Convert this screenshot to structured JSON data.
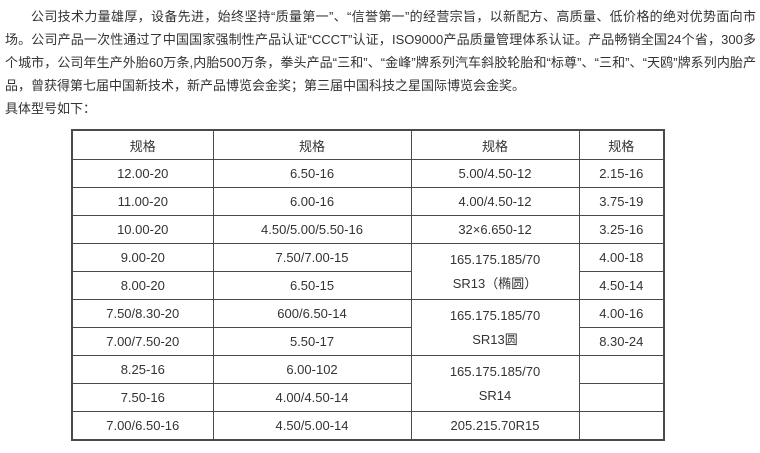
{
  "intro": {
    "paragraph": "公司技术力量雄厚，设备先进，始终坚持“质量第一”、“信誉第一”的经营宗旨，以新配方、高质量、低价格的绝对优势面向市场。公司产品一次性通过了中国国家强制性产品认证“CCCT”认证，ISO9000产品质量管理体系认证。产品畅销全国24个省，300多个城市，公司年生产外胎60万条,内胎500万条，拳头产品“三和”、“金峰”牌系列汽车斜胶轮胎和“标尊”、“三和”、“天鸥”牌系列内胎产品，曾获得第七届中国新技术，新产品博览会金奖；第三届中国科技之星国际博览会金奖。",
    "caption": "具体型号如下："
  },
  "colors": {
    "text": "#333333",
    "border": "#4a4a4a",
    "background": "#ffffff"
  },
  "table": {
    "headers": [
      "规格",
      "规格",
      "规格",
      "规格"
    ],
    "col1": [
      "12.00-20",
      "11.00-20",
      "10.00-20",
      "9.00-20",
      "8.00-20",
      "7.50/8.30-20",
      "7.00/7.50-20",
      "8.25-16",
      "7.50-16",
      "7.00/6.50-16"
    ],
    "col2": [
      "6.50-16",
      "6.00-16",
      "4.50/5.00/5.50-16",
      "7.50/7.00-15",
      "6.50-15",
      "600/6.50-14",
      "5.50-17",
      "6.00-102",
      "4.00/4.50-14",
      "4.50/5.00-14"
    ],
    "col3": {
      "r0": "5.00/4.50-12",
      "r1": "4.00/4.50-12",
      "r2": "32×6.650-12",
      "m0_line1": "165.175.185/70",
      "m0_line2": "SR13（椭圆）",
      "m1_line1": "165.175.185/70",
      "m1_line2": "SR13圆",
      "m2_line1": "165.175.185/70",
      "m2_line2": "SR14",
      "r9": "205.215.70R15"
    },
    "col4": [
      "2.15-16",
      "3.75-19",
      "3.25-16",
      "4.00-18",
      "4.50-14",
      "4.00-16",
      "8.30-24",
      "",
      "",
      ""
    ]
  }
}
